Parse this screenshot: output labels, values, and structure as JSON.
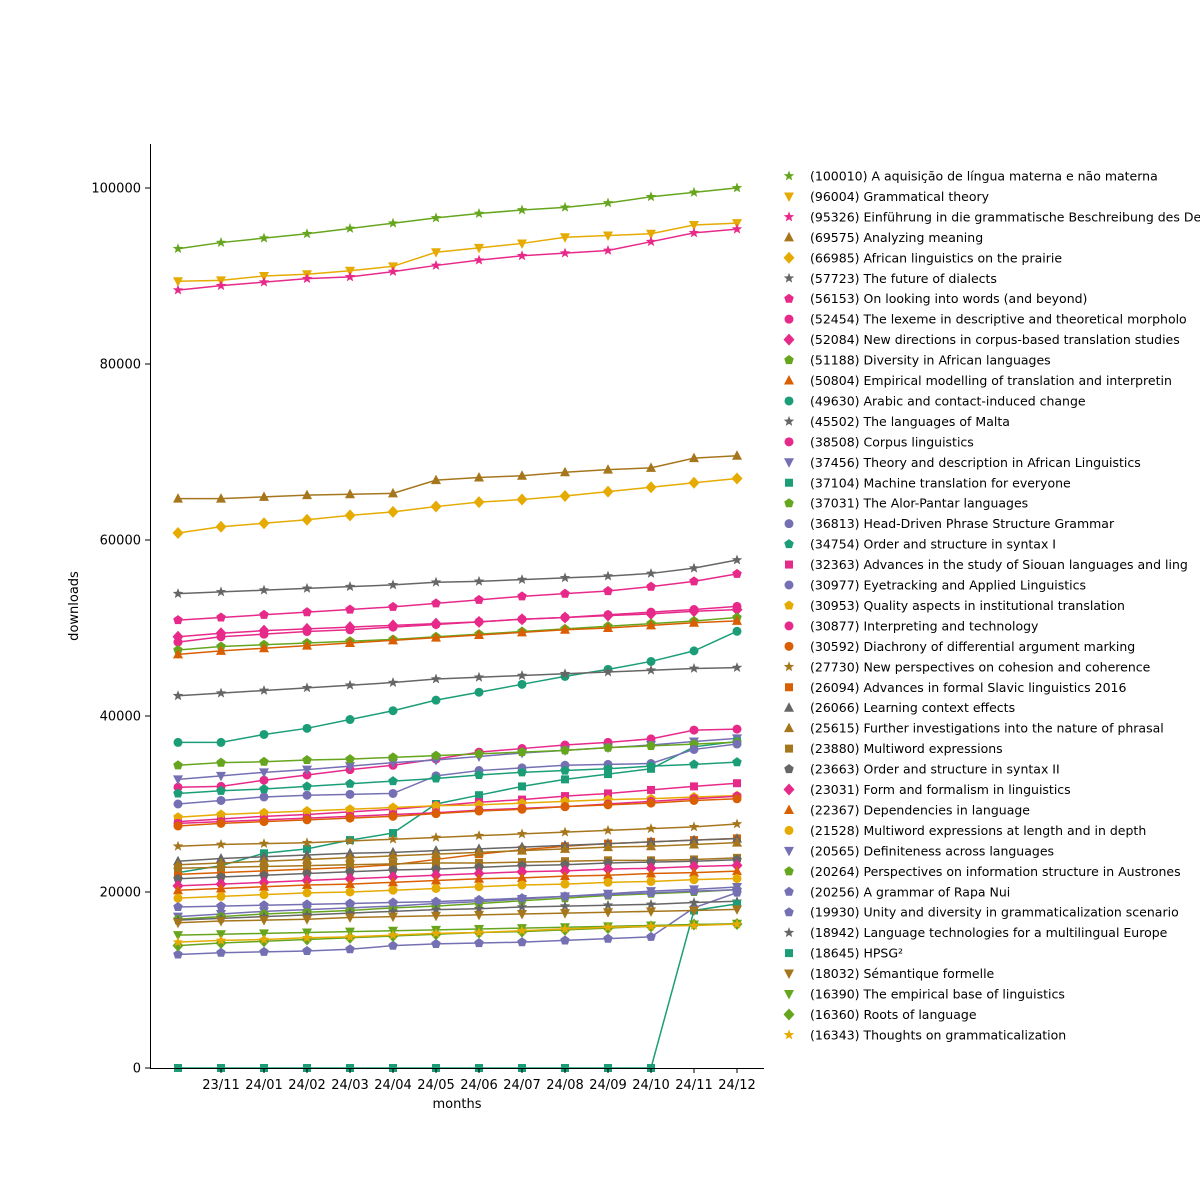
{
  "chart_data": {
    "type": "line",
    "xlabel": "months",
    "ylabel": "downloads",
    "ylim": [
      0,
      105000
    ],
    "y_ticks": [
      0,
      20000,
      40000,
      60000,
      80000,
      100000
    ],
    "x_tick_labels": [
      "23/11",
      "24/01",
      "24/02",
      "24/03",
      "24/04",
      "24/05",
      "24/06",
      "24/07",
      "24/08",
      "24/09",
      "24/10",
      "24/11",
      "24/12"
    ],
    "grid": false,
    "legend_position": "outside-right",
    "series": [
      {
        "name": "(100010) A aquisição de língua materna e não materna",
        "color": "#66a61e",
        "marker": "star",
        "values": [
          93100,
          93800,
          94300,
          94800,
          95400,
          96000,
          96600,
          97100,
          97500,
          97800,
          98300,
          99000,
          99500,
          100010
        ]
      },
      {
        "name": "(96004) Grammatical theory",
        "color": "#e6ab02",
        "marker": "triangle-down",
        "values": [
          89400,
          89500,
          90000,
          90200,
          90600,
          91100,
          92700,
          93200,
          93700,
          94400,
          94600,
          94800,
          95800,
          96004
        ]
      },
      {
        "name": "(95326) Einführung in die grammatische Beschreibung des De",
        "color": "#e7298a",
        "marker": "star",
        "values": [
          88400,
          88900,
          89300,
          89700,
          89900,
          90500,
          91200,
          91800,
          92300,
          92600,
          92900,
          93900,
          94900,
          95326
        ]
      },
      {
        "name": "(69575) Analyzing meaning",
        "color": "#a6761d",
        "marker": "triangle-up",
        "values": [
          64700,
          64700,
          64900,
          65100,
          65200,
          65300,
          66800,
          67100,
          67300,
          67700,
          68000,
          68200,
          69300,
          69575
        ]
      },
      {
        "name": "(66985) African linguistics on the prairie",
        "color": "#e6ab02",
        "marker": "diamond",
        "values": [
          60800,
          61500,
          61900,
          62300,
          62800,
          63200,
          63800,
          64300,
          64600,
          65000,
          65500,
          66000,
          66500,
          66985
        ]
      },
      {
        "name": "(57723) The future of dialects",
        "color": "#666666",
        "marker": "star",
        "values": [
          53900,
          54100,
          54300,
          54500,
          54700,
          54900,
          55200,
          55300,
          55500,
          55700,
          55900,
          56200,
          56800,
          57723
        ]
      },
      {
        "name": "(56153) On looking into words (and beyond)",
        "color": "#e7298a",
        "marker": "pentagon",
        "values": [
          50900,
          51200,
          51500,
          51800,
          52100,
          52400,
          52800,
          53200,
          53600,
          53900,
          54200,
          54700,
          55300,
          56153
        ]
      },
      {
        "name": "(52454) The lexeme in descriptive and theoretical morpholo",
        "color": "#e7298a",
        "marker": "circle",
        "values": [
          48400,
          49000,
          49300,
          49600,
          49800,
          50100,
          50400,
          50700,
          51000,
          51200,
          51500,
          51800,
          52100,
          52454
        ]
      },
      {
        "name": "(52084) New directions in corpus-based translation studies",
        "color": "#e7298a",
        "marker": "diamond",
        "values": [
          49000,
          49400,
          49700,
          49900,
          50100,
          50300,
          50500,
          50700,
          51000,
          51200,
          51400,
          51600,
          51900,
          52084
        ]
      },
      {
        "name": "(51188) Diversity in African languages",
        "color": "#66a61e",
        "marker": "pentagon",
        "values": [
          47500,
          47900,
          48100,
          48300,
          48500,
          48700,
          49000,
          49300,
          49600,
          49900,
          50200,
          50500,
          50800,
          51188
        ]
      },
      {
        "name": "(50804) Empirical modelling of translation and interpretin",
        "color": "#d95f02",
        "marker": "triangle-up",
        "values": [
          47000,
          47400,
          47700,
          48000,
          48300,
          48600,
          48900,
          49200,
          49500,
          49800,
          50000,
          50300,
          50600,
          50804
        ]
      },
      {
        "name": "(49630) Arabic and contact-induced change",
        "color": "#1b9e77",
        "marker": "circle",
        "values": [
          37000,
          37000,
          37900,
          38600,
          39600,
          40600,
          41800,
          42700,
          43600,
          44500,
          45300,
          46200,
          47400,
          49630
        ]
      },
      {
        "name": "(45502) The languages of Malta",
        "color": "#666666",
        "marker": "star",
        "values": [
          42300,
          42600,
          42900,
          43200,
          43500,
          43800,
          44200,
          44400,
          44600,
          44800,
          45000,
          45200,
          45400,
          45502
        ]
      },
      {
        "name": "(38508) Corpus linguistics",
        "color": "#e7298a",
        "marker": "circle",
        "values": [
          31900,
          32000,
          32700,
          33300,
          33900,
          34400,
          35100,
          35900,
          36300,
          36700,
          37000,
          37400,
          38400,
          38508
        ]
      },
      {
        "name": "(37456) Theory and description in African Linguistics",
        "color": "#7570b3",
        "marker": "triangle-down",
        "values": [
          32800,
          33200,
          33600,
          33900,
          34300,
          34700,
          35000,
          35400,
          35800,
          36100,
          36400,
          36700,
          37100,
          37456
        ]
      },
      {
        "name": "(37104) Machine translation for everyone",
        "color": "#1b9e77",
        "marker": "square",
        "values": [
          22200,
          23000,
          24400,
          24900,
          25900,
          26700,
          30000,
          31000,
          32000,
          32800,
          33400,
          34000,
          36500,
          37104
        ]
      },
      {
        "name": "(37031) The Alor-Pantar languages",
        "color": "#66a61e",
        "marker": "pentagon",
        "values": [
          34400,
          34700,
          34800,
          35000,
          35100,
          35300,
          35500,
          35700,
          35900,
          36100,
          36400,
          36600,
          36800,
          37031
        ]
      },
      {
        "name": "(36813) Head-Driven Phrase Structure Grammar",
        "color": "#7570b3",
        "marker": "circle",
        "values": [
          30000,
          30400,
          30800,
          31000,
          31100,
          31200,
          33200,
          33800,
          34100,
          34400,
          34500,
          34600,
          36200,
          36813
        ]
      },
      {
        "name": "(34754) Order and structure in syntax I",
        "color": "#1b9e77",
        "marker": "pentagon",
        "values": [
          31200,
          31500,
          31700,
          32000,
          32300,
          32600,
          32900,
          33300,
          33600,
          33800,
          34000,
          34300,
          34500,
          34754
        ]
      },
      {
        "name": "(32363) Advances in the study of Siouan languages and ling",
        "color": "#e7298a",
        "marker": "square",
        "values": [
          28000,
          28300,
          28600,
          28800,
          29100,
          29400,
          29800,
          30200,
          30500,
          30900,
          31200,
          31600,
          32000,
          32363
        ]
      },
      {
        "name": "(30977) Eyetracking and Applied Linguistics",
        "color": "#7570b3",
        "marker": "circle",
        "values": null
      },
      {
        "name": "(30953) Quality aspects in institutional translation",
        "color": "#e6ab02",
        "marker": "pentagon",
        "values": [
          28500,
          28800,
          29000,
          29200,
          29400,
          29600,
          29800,
          29900,
          30100,
          30300,
          30500,
          30600,
          30800,
          30953
        ]
      },
      {
        "name": "(30877) Interpreting and technology",
        "color": "#e7298a",
        "marker": "circle",
        "values": [
          27800,
          28000,
          28200,
          28400,
          28600,
          28800,
          29000,
          29300,
          29500,
          29700,
          30000,
          30300,
          30600,
          30877
        ]
      },
      {
        "name": "(30592) Diachrony of differential argument marking",
        "color": "#d95f02",
        "marker": "circle",
        "values": [
          27500,
          27800,
          28000,
          28200,
          28400,
          28600,
          28900,
          29200,
          29400,
          29700,
          29900,
          30100,
          30400,
          30592
        ]
      },
      {
        "name": "(27730) New perspectives on cohesion and coherence",
        "color": "#a6761d",
        "marker": "star",
        "values": [
          25200,
          25400,
          25500,
          25600,
          25800,
          26000,
          26200,
          26400,
          26600,
          26800,
          27000,
          27200,
          27400,
          27730
        ]
      },
      {
        "name": "(26094) Advances in formal Slavic linguistics 2016",
        "color": "#d95f02",
        "marker": "square",
        "values": [
          22000,
          22200,
          22400,
          22600,
          22800,
          23100,
          23700,
          24300,
          24800,
          25200,
          25500,
          25700,
          25900,
          26094
        ]
      },
      {
        "name": "(26066) Learning context effects",
        "color": "#666666",
        "marker": "triangle-up",
        "values": [
          23500,
          23800,
          24000,
          24200,
          24400,
          24500,
          24700,
          24900,
          25100,
          25300,
          25500,
          25700,
          25900,
          26066
        ]
      },
      {
        "name": "(25615) Further investigations into the nature of phrasal",
        "color": "#a6761d",
        "marker": "triangle-up",
        "values": [
          23100,
          23300,
          23500,
          23700,
          23900,
          24100,
          24300,
          24500,
          24700,
          24900,
          25100,
          25200,
          25400,
          25615
        ]
      },
      {
        "name": "(23880) Multiword expressions",
        "color": "#a6761d",
        "marker": "square",
        "values": [
          22700,
          22800,
          22900,
          23000,
          23100,
          23200,
          23300,
          23300,
          23400,
          23500,
          23600,
          23600,
          23700,
          23880
        ]
      },
      {
        "name": "(23663) Order and structure in syntax II",
        "color": "#666666",
        "marker": "pentagon",
        "values": [
          21500,
          21700,
          21900,
          22100,
          22300,
          22500,
          22600,
          22800,
          23000,
          23100,
          23300,
          23400,
          23500,
          23663
        ]
      },
      {
        "name": "(23031) Form and formalism in linguistics",
        "color": "#e7298a",
        "marker": "diamond",
        "values": [
          20700,
          20900,
          21100,
          21300,
          21500,
          21700,
          21900,
          22100,
          22300,
          22400,
          22600,
          22700,
          22900,
          23031
        ]
      },
      {
        "name": "(22367) Dependencies in language",
        "color": "#d95f02",
        "marker": "triangle-up",
        "values": [
          20200,
          20400,
          20600,
          20800,
          20900,
          21100,
          21300,
          21500,
          21600,
          21800,
          21900,
          22100,
          22200,
          22367
        ]
      },
      {
        "name": "(21528) Multiword expressions at length and in depth",
        "color": "#e6ab02",
        "marker": "circle",
        "values": [
          19300,
          19500,
          19700,
          19900,
          20000,
          20200,
          20400,
          20600,
          20800,
          20900,
          21100,
          21200,
          21400,
          21528
        ]
      },
      {
        "name": "(20565) Definiteness across languages",
        "color": "#7570b3",
        "marker": "triangle-down",
        "values": [
          17200,
          17500,
          17800,
          18000,
          18200,
          18400,
          18700,
          18900,
          19200,
          19500,
          19800,
          20100,
          20300,
          20565
        ]
      },
      {
        "name": "(20264) Perspectives on information structure in Austrones",
        "color": "#66a61e",
        "marker": "pentagon",
        "values": [
          16900,
          17200,
          17500,
          17700,
          17900,
          18200,
          18400,
          18700,
          19000,
          19300,
          19600,
          19800,
          20000,
          20264
        ]
      },
      {
        "name": "(20256) A grammar of Rapa Nui",
        "color": "#7570b3",
        "marker": "pentagon",
        "values": [
          18300,
          18400,
          18500,
          18600,
          18700,
          18800,
          18900,
          19100,
          19300,
          19500,
          19700,
          19900,
          20100,
          20256
        ]
      },
      {
        "name": "(19930) Unity and diversity in grammaticalization scenario",
        "color": "#7570b3",
        "marker": "pentagon",
        "values": [
          12900,
          13100,
          13200,
          13300,
          13500,
          13900,
          14100,
          14200,
          14300,
          14500,
          14700,
          14900,
          18200,
          19930
        ]
      },
      {
        "name": "(18942) Language technologies for a multilingual Europe",
        "color": "#666666",
        "marker": "star",
        "values": [
          16800,
          17000,
          17200,
          17400,
          17600,
          17800,
          18000,
          18100,
          18300,
          18400,
          18500,
          18600,
          18800,
          18942
        ]
      },
      {
        "name": "(18645) HPSG²",
        "color": "#1b9e77",
        "marker": "square",
        "values": [
          0,
          0,
          0,
          0,
          0,
          0,
          0,
          0,
          0,
          0,
          0,
          0,
          17900,
          18645
        ]
      },
      {
        "name": "(18032) Sémantique formelle",
        "color": "#a6761d",
        "marker": "triangle-down",
        "values": [
          16500,
          16700,
          16800,
          16900,
          17100,
          17200,
          17300,
          17400,
          17500,
          17600,
          17700,
          17800,
          17900,
          18032
        ]
      },
      {
        "name": "(16390) The empirical base of linguistics",
        "color": "#66a61e",
        "marker": "triangle-down",
        "values": [
          15100,
          15200,
          15300,
          15400,
          15500,
          15600,
          15700,
          15800,
          15900,
          16000,
          16100,
          16200,
          16300,
          16390
        ]
      },
      {
        "name": "(16360) Roots of language",
        "color": "#66a61e",
        "marker": "diamond",
        "values": [
          13900,
          14200,
          14400,
          14600,
          14800,
          15000,
          15200,
          15400,
          15500,
          15700,
          15900,
          16100,
          16300,
          16360
        ]
      },
      {
        "name": "(16343) Thoughts on grammaticalization",
        "color": "#e6ab02",
        "marker": "star",
        "values": [
          14300,
          14500,
          14600,
          14800,
          14900,
          15100,
          15300,
          15400,
          15600,
          15800,
          16000,
          16100,
          16200,
          16343
        ]
      }
    ]
  }
}
